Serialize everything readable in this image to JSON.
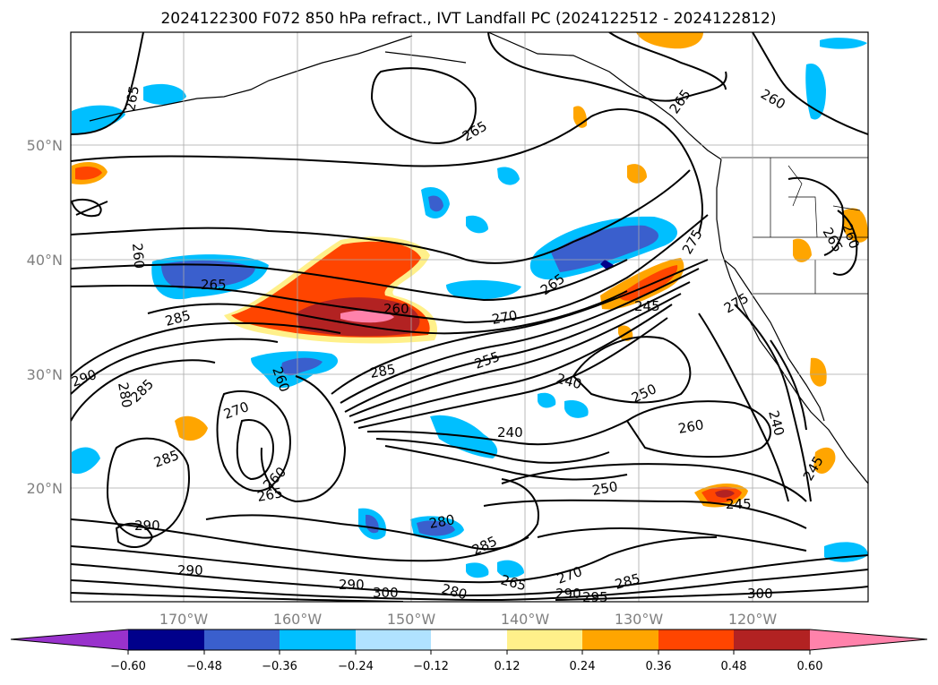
{
  "title": "2024122300 F072 850 hPa refract., IVT Landfall PC (2024122512 - 2024122812)",
  "lat_labels": [
    "50°N",
    "40°N",
    "30°N",
    "20°N"
  ],
  "lon_labels": [
    "170°W",
    "160°W",
    "150°W",
    "140°W",
    "130°W",
    "120°W"
  ],
  "colorbar": {
    "colors": [
      "#9932cc",
      "#00008b",
      "#3a5fcd",
      "#00bfff",
      "#b0e2ff",
      "#ffffff",
      "#fff08a",
      "#ffa500",
      "#ff4500",
      "#b22222",
      "#ff82ab"
    ],
    "tick_labels": [
      "−0.60",
      "−0.48",
      "−0.36",
      "−0.24",
      "−0.12",
      "0.12",
      "0.24",
      "0.36",
      "0.48",
      "0.60"
    ]
  },
  "contour_labels": [
    "265",
    "265",
    "265",
    "260",
    "260",
    "265",
    "260",
    "265",
    "275",
    "265",
    "285",
    "260",
    "270",
    "245",
    "290",
    "280",
    "285",
    "275",
    "285",
    "255",
    "240",
    "250",
    "240",
    "270",
    "260",
    "240",
    "285",
    "260",
    "265",
    "250",
    "260",
    "245",
    "245",
    "290",
    "280",
    "285",
    "290",
    "300",
    "280",
    "265",
    "270",
    "290",
    "295",
    "285",
    "300",
    "290"
  ]
}
